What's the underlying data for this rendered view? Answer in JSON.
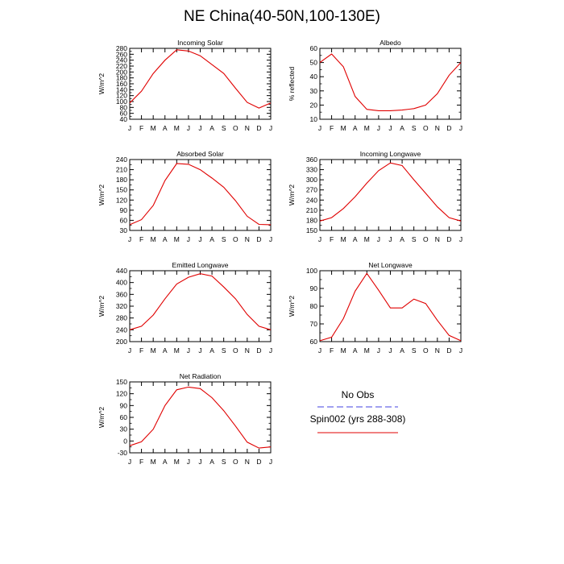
{
  "title": "NE China(40-50N,100-130E)",
  "months": [
    "J",
    "F",
    "M",
    "A",
    "M",
    "J",
    "J",
    "A",
    "S",
    "O",
    "N",
    "D",
    "J"
  ],
  "colors": {
    "model": "#e00000",
    "obs": "#4040e0",
    "axis": "#000000"
  },
  "legend": {
    "obs_label": "No Obs",
    "model_label": "Spin002 (yrs 288-308)"
  },
  "chart_data": [
    {
      "type": "line",
      "title": "Incoming Solar",
      "ylabel": "W/m^2",
      "ylim": [
        40,
        280
      ],
      "yticks": [
        40,
        60,
        80,
        100,
        120,
        140,
        160,
        180,
        200,
        220,
        240,
        260,
        280
      ],
      "categories": [
        "J",
        "F",
        "M",
        "A",
        "M",
        "J",
        "J",
        "A",
        "S",
        "O",
        "N",
        "D",
        "J"
      ],
      "series": [
        {
          "name": "Spin002 (yrs 288-308)",
          "values": [
            95,
            135,
            195,
            240,
            275,
            271,
            255,
            225,
            195,
            145,
            97,
            78,
            95
          ]
        }
      ]
    },
    {
      "type": "line",
      "title": "Albedo",
      "ylabel": "% reflected",
      "ylim": [
        10,
        60
      ],
      "yticks": [
        10,
        20,
        30,
        40,
        50,
        60
      ],
      "categories": [
        "J",
        "F",
        "M",
        "A",
        "M",
        "J",
        "J",
        "A",
        "S",
        "O",
        "N",
        "D",
        "J"
      ],
      "series": [
        {
          "name": "Spin002 (yrs 288-308)",
          "values": [
            50,
            56,
            47,
            26,
            17,
            16,
            16,
            16.5,
            17.5,
            20,
            28,
            41,
            50
          ]
        }
      ]
    },
    {
      "type": "line",
      "title": "Absorbed Solar",
      "ylabel": "W/m^2",
      "ylim": [
        30,
        240
      ],
      "yticks": [
        30,
        60,
        90,
        120,
        150,
        180,
        210,
        240
      ],
      "categories": [
        "J",
        "F",
        "M",
        "A",
        "M",
        "J",
        "J",
        "A",
        "S",
        "O",
        "N",
        "D",
        "J"
      ],
      "series": [
        {
          "name": "Spin002 (yrs 288-308)",
          "values": [
            47,
            62,
            104,
            178,
            228,
            226,
            210,
            185,
            158,
            118,
            72,
            48,
            47
          ]
        }
      ]
    },
    {
      "type": "line",
      "title": "Incoming Longwave",
      "ylabel": "W/m^2",
      "ylim": [
        150,
        360
      ],
      "yticks": [
        150,
        180,
        210,
        240,
        270,
        300,
        330,
        360
      ],
      "categories": [
        "J",
        "F",
        "M",
        "A",
        "M",
        "J",
        "J",
        "A",
        "S",
        "O",
        "N",
        "D",
        "J"
      ],
      "series": [
        {
          "name": "Spin002 (yrs 288-308)",
          "values": [
            178,
            188,
            215,
            250,
            290,
            327,
            350,
            342,
            300,
            260,
            220,
            188,
            178
          ]
        }
      ]
    },
    {
      "type": "line",
      "title": "Emitted Longwave",
      "ylabel": "W/m^2",
      "ylim": [
        200,
        440
      ],
      "yticks": [
        200,
        240,
        280,
        320,
        360,
        400,
        440
      ],
      "categories": [
        "J",
        "F",
        "M",
        "A",
        "M",
        "J",
        "J",
        "A",
        "S",
        "O",
        "N",
        "D",
        "J"
      ],
      "series": [
        {
          "name": "Spin002 (yrs 288-308)",
          "values": [
            240,
            252,
            290,
            345,
            395,
            418,
            430,
            422,
            385,
            345,
            292,
            252,
            240
          ]
        }
      ]
    },
    {
      "type": "line",
      "title": "Net Longwave",
      "ylabel": "W/m^2",
      "ylim": [
        60,
        100
      ],
      "yticks": [
        60,
        70,
        80,
        90,
        100
      ],
      "categories": [
        "J",
        "F",
        "M",
        "A",
        "M",
        "J",
        "J",
        "A",
        "S",
        "O",
        "N",
        "D",
        "J"
      ],
      "series": [
        {
          "name": "Spin002 (yrs 288-308)",
          "values": [
            60.5,
            62.5,
            73,
            88.5,
            98.5,
            89,
            79,
            79,
            84,
            81.5,
            72,
            63.5,
            60.5
          ]
        }
      ]
    },
    {
      "type": "line",
      "title": "Net Radiation",
      "ylabel": "W/m^2",
      "ylim": [
        -30,
        150
      ],
      "yticks": [
        -30,
        0,
        30,
        60,
        90,
        120,
        150
      ],
      "categories": [
        "J",
        "F",
        "M",
        "A",
        "M",
        "J",
        "J",
        "A",
        "S",
        "O",
        "N",
        "D",
        "J"
      ],
      "series": [
        {
          "name": "Spin002 (yrs 288-308)",
          "values": [
            -12,
            -2,
            30,
            90,
            130,
            137,
            133,
            110,
            77,
            38,
            -3,
            -18,
            -15
          ]
        }
      ]
    }
  ]
}
